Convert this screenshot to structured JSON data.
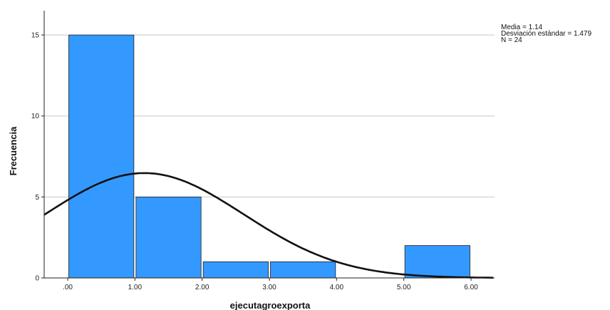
{
  "chart_data": {
    "type": "bar",
    "variant": "histogram",
    "xlabel": "ejecutagroexporta",
    "ylabel": "Frecuencia",
    "x_ticks": [
      ".00",
      "1.00",
      "2.00",
      "3.00",
      "4.00",
      "5.00",
      "6.00"
    ],
    "y_ticks": [
      0,
      5,
      10,
      15
    ],
    "ylim": [
      0,
      16.5
    ],
    "xlim": [
      -0.35,
      6.35
    ],
    "bins": [
      {
        "start": 0,
        "end": 1,
        "value": 15
      },
      {
        "start": 1,
        "end": 2,
        "value": 5
      },
      {
        "start": 2,
        "end": 3,
        "value": 1
      },
      {
        "start": 3,
        "end": 4,
        "value": 1
      },
      {
        "start": 4,
        "end": 5,
        "value": 0
      },
      {
        "start": 5,
        "end": 6,
        "value": 2
      }
    ],
    "normal_curve": {
      "mean": 1.14,
      "sd": 1.479,
      "n": 24
    },
    "stats_text": [
      "Media = 1.14",
      "Desviación estándar = 1.479",
      "N = 24"
    ],
    "grid": "horizontal",
    "bar_color": "#3399ff",
    "curve_color": "#111111"
  }
}
